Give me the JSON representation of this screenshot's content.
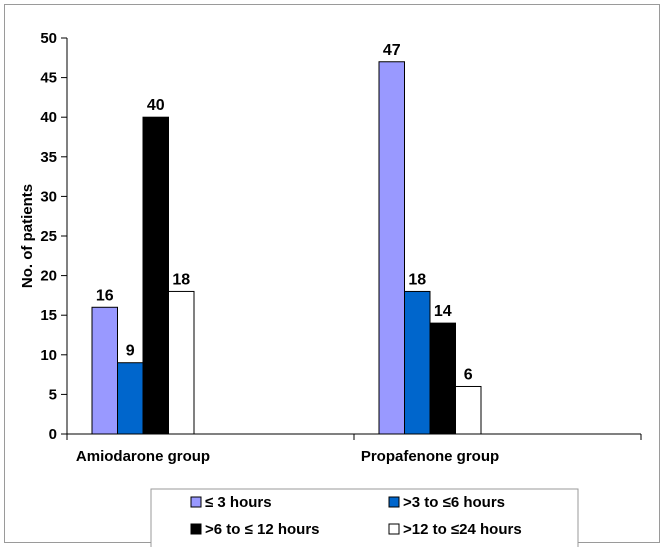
{
  "chart_data": {
    "type": "bar",
    "title": "",
    "xlabel": "",
    "ylabel": "No. of patients",
    "ylim": [
      0,
      50
    ],
    "yticks": [
      0,
      5,
      10,
      15,
      20,
      25,
      30,
      35,
      40,
      45,
      50
    ],
    "categories": [
      "Amiodarone group",
      "Propafenone group"
    ],
    "series": [
      {
        "name": "≤ 3 hours",
        "values": [
          16,
          47
        ],
        "color": "#9999ff"
      },
      {
        "name": ">3 to ≤6 hours",
        "values": [
          9,
          18
        ],
        "color": "#0066cc"
      },
      {
        "name": ">6 to ≤ 12 hours",
        "values": [
          40,
          14
        ],
        "color": "#000000"
      },
      {
        "name": ">12 to ≤24 hours",
        "values": [
          18,
          6
        ],
        "color": "#ffffff"
      }
    ],
    "grid": false,
    "legend_position": "bottom",
    "data_labels": true
  }
}
